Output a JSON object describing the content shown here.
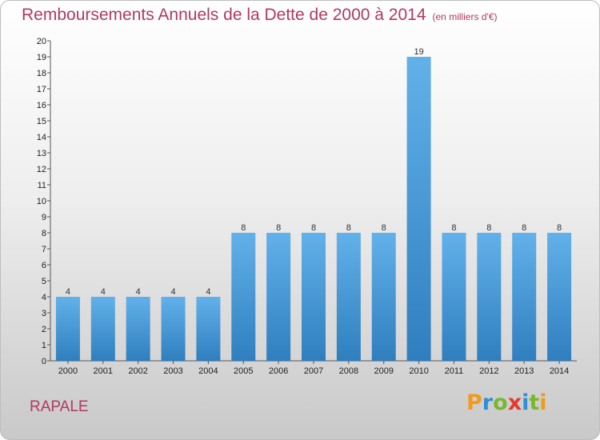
{
  "title": "Remboursements Annuels de la Dette de 2000 à 2014",
  "subtitle": "(en milliers d'€)",
  "commune": "RAPALE",
  "logo": {
    "letters": [
      "P",
      "r",
      "o",
      "x",
      "i",
      "t",
      "i"
    ],
    "colors": [
      "#f29a1b",
      "#2f8fd6",
      "#7ab72f",
      "#e23b2e",
      "#2f8fd6",
      "#7ab72f",
      "#f29a1b"
    ]
  },
  "colors": {
    "bar_light": "#62b1ea",
    "bar_dark": "#2f7fbf",
    "title": "#b0395f"
  },
  "chart_data": {
    "type": "bar",
    "title": "Remboursements Annuels de la Dette de 2000 à 2014",
    "subtitle": "(en milliers d'€)",
    "categories": [
      "2000",
      "2001",
      "2002",
      "2003",
      "2004",
      "2005",
      "2006",
      "2007",
      "2008",
      "2009",
      "2010",
      "2011",
      "2012",
      "2013",
      "2014"
    ],
    "values": [
      4,
      4,
      4,
      4,
      4,
      8,
      8,
      8,
      8,
      8,
      19,
      8,
      8,
      8,
      8
    ],
    "ylim": [
      0,
      20
    ],
    "yticks": [
      0,
      1,
      2,
      3,
      4,
      5,
      6,
      7,
      8,
      9,
      10,
      11,
      12,
      13,
      14,
      15,
      16,
      17,
      18,
      19,
      20
    ],
    "grid": false,
    "legend": "none"
  }
}
